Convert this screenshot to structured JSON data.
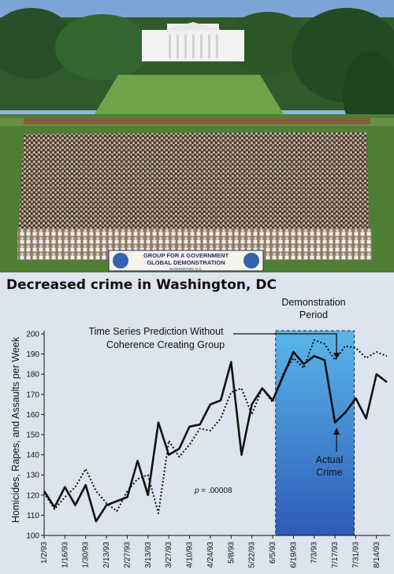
{
  "photo": {
    "banner_line1": "GROUP FOR A GOVERNMENT",
    "banner_line2": "GLOBAL DEMONSTRATION",
    "banner_line3": "WASHINGTON, D.C."
  },
  "chart_data": {
    "type": "line",
    "title": "Decreased crime in Washington, DC",
    "ylabel": "Homicides, Rapes, and Assaults per Week",
    "xlabel": "",
    "ylim": [
      100,
      200
    ],
    "yticks": [
      100,
      110,
      120,
      130,
      140,
      150,
      160,
      170,
      180,
      190,
      200
    ],
    "x_tick_labels": [
      "1/2/93",
      "1/16/93",
      "1/30/93",
      "2/13/93",
      "2/27/93",
      "3/13/93",
      "3/27/93",
      "4/10/93",
      "4/24/93",
      "5/8/93",
      "5/22/93",
      "6/5/93",
      "6/19/93",
      "7/3/93",
      "7/17/93",
      "7/31/93",
      "8/14/93"
    ],
    "x": [
      "1/2/93",
      "1/9/93",
      "1/16/93",
      "1/23/93",
      "1/30/93",
      "2/6/93",
      "2/13/93",
      "2/20/93",
      "2/27/93",
      "3/6/93",
      "3/13/93",
      "3/20/93",
      "3/27/93",
      "4/3/93",
      "4/10/93",
      "4/17/93",
      "4/24/93",
      "5/1/93",
      "5/8/93",
      "5/15/93",
      "5/22/93",
      "5/29/93",
      "6/5/93",
      "6/12/93",
      "6/19/93",
      "6/26/93",
      "7/3/93",
      "7/10/93",
      "7/17/93",
      "7/24/93",
      "7/31/93",
      "8/7/93",
      "8/14/93",
      "8/21/93"
    ],
    "series": [
      {
        "name": "Actual Crime",
        "style": "solid",
        "values": [
          122,
          114,
          124,
          115,
          125,
          107,
          115,
          117,
          119,
          137,
          120,
          156,
          140,
          143,
          154,
          155,
          165,
          167,
          186,
          140,
          165,
          173,
          167,
          179,
          191,
          185,
          189,
          187,
          156,
          161,
          168,
          158,
          180,
          176
        ]
      },
      {
        "name": "Time Series Prediction Without Coherence Creating Group",
        "style": "dotted",
        "values": [
          121,
          113,
          119,
          124,
          133,
          122,
          116,
          112,
          122,
          128,
          130,
          111,
          147,
          139,
          145,
          153,
          152,
          158,
          171,
          173,
          160,
          173,
          166,
          180,
          188,
          183,
          197,
          195,
          187,
          194,
          193,
          188,
          191,
          189
        ]
      }
    ],
    "demonstration_period": {
      "label": "Demonstration Period",
      "start": "6/7/93",
      "end": "7/30/93"
    },
    "annotations": {
      "prediction_label_line1": "Time Series Prediction Without",
      "prediction_label_line2": "Coherence Creating Group",
      "actual_label_line1": "Actual",
      "actual_label_line2": "Crime",
      "period_label_line1": "Demonstration",
      "period_label_line2": "Period",
      "p_prefix": "p",
      "p_value": " = .00008"
    },
    "colors": {
      "panel_background": "#dde3ef",
      "period_top": "#5ab6ea",
      "period_bottom": "#2e5bb8",
      "line": "#111111"
    }
  }
}
